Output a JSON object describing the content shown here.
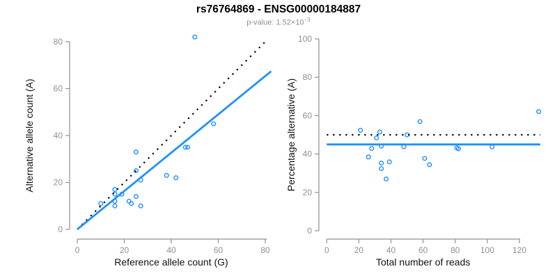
{
  "title": "rs76764869 - ENSG00000184887",
  "subtitle": {
    "prefix": "p-value: 1.52×10",
    "exponent": "−3"
  },
  "colors": {
    "accent_blue": "#1E90FF",
    "line_black": "#000000",
    "axis_gray": "#8f8f8f",
    "tick_label_gray": "#8f8f8f",
    "axis_title_black": "#111111",
    "background": "#ffffff"
  },
  "chart_data": [
    {
      "type": "scatter",
      "panel": "left",
      "xlabel": "Reference allele count (G)",
      "ylabel": "Alternative allele count (A)",
      "xlim": [
        0,
        83
      ],
      "ylim": [
        0,
        83
      ],
      "xticks": [
        0,
        20,
        40,
        60,
        80
      ],
      "yticks": [
        0,
        20,
        40,
        60,
        80
      ],
      "grid": false,
      "legend": false,
      "marker": "open-circle",
      "points": [
        [
          10,
          11
        ],
        [
          16,
          10
        ],
        [
          16,
          12
        ],
        [
          16,
          15
        ],
        [
          16,
          17
        ],
        [
          19,
          15
        ],
        [
          22,
          12
        ],
        [
          23,
          11
        ],
        [
          25,
          14
        ],
        [
          25,
          25
        ],
        [
          25,
          33
        ],
        [
          27,
          10
        ],
        [
          27,
          21
        ],
        [
          38,
          23
        ],
        [
          42,
          22
        ],
        [
          46,
          35
        ],
        [
          47,
          35
        ],
        [
          50,
          82
        ],
        [
          58,
          45
        ]
      ],
      "lines": [
        {
          "name": "expected-line",
          "style": "dotted",
          "color": "#000000",
          "width": 2.2,
          "x1": 0,
          "y1": 0,
          "x2": 81,
          "y2": 81
        },
        {
          "name": "fit-line",
          "style": "solid",
          "color": "#1E90FF",
          "width": 2.8,
          "x1": 0,
          "y1": 0,
          "x2": 82.5,
          "y2": 67.4
        }
      ]
    },
    {
      "type": "scatter",
      "panel": "right",
      "xlabel": "Total number of reads",
      "ylabel": "Percentage alternative (A)",
      "xlim": [
        0,
        133
      ],
      "ylim": [
        0,
        100
      ],
      "xticks": [
        0,
        20,
        40,
        60,
        80,
        100,
        120
      ],
      "yticks": [
        0,
        20,
        40,
        60,
        80,
        100
      ],
      "grid": false,
      "legend": false,
      "marker": "open-circle",
      "points": [
        [
          21,
          52.4
        ],
        [
          26,
          38.5
        ],
        [
          28,
          42.9
        ],
        [
          31,
          48.4
        ],
        [
          33,
          51.5
        ],
        [
          34,
          44.1
        ],
        [
          34,
          35.3
        ],
        [
          34,
          32.4
        ],
        [
          39,
          35.9
        ],
        [
          50,
          50.0
        ],
        [
          58,
          56.9
        ],
        [
          37,
          27.0
        ],
        [
          48,
          43.8
        ],
        [
          61,
          37.7
        ],
        [
          64,
          34.4
        ],
        [
          81,
          43.2
        ],
        [
          82,
          42.7
        ],
        [
          132,
          62.1
        ],
        [
          103,
          43.7
        ]
      ],
      "lines": [
        {
          "name": "expected-line",
          "style": "dotted",
          "color": "#000000",
          "width": 2.2,
          "x1": 0,
          "y1": 50,
          "x2": 133,
          "y2": 50
        },
        {
          "name": "fit-line",
          "style": "solid",
          "color": "#1E90FF",
          "width": 2.8,
          "x1": 0,
          "y1": 45,
          "x2": 133,
          "y2": 45
        }
      ]
    }
  ]
}
